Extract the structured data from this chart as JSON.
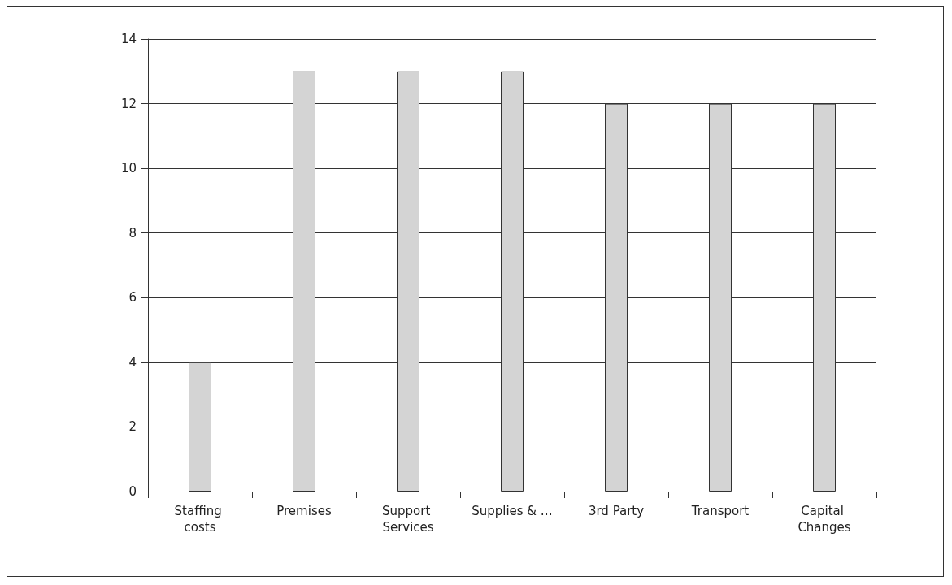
{
  "chart_data": {
    "type": "bar",
    "categories": [
      "Staffing costs",
      "Premises",
      "Support Services",
      "Supplies & …",
      "3rd Party",
      "Transport",
      "Capital Changes"
    ],
    "values": [
      4,
      13,
      13,
      13,
      12,
      12,
      12
    ],
    "color": "#d4d4d4",
    "ylim": [
      0,
      14
    ],
    "yticks": [
      0,
      2,
      4,
      6,
      8,
      10,
      12,
      14
    ],
    "grid": "y"
  }
}
